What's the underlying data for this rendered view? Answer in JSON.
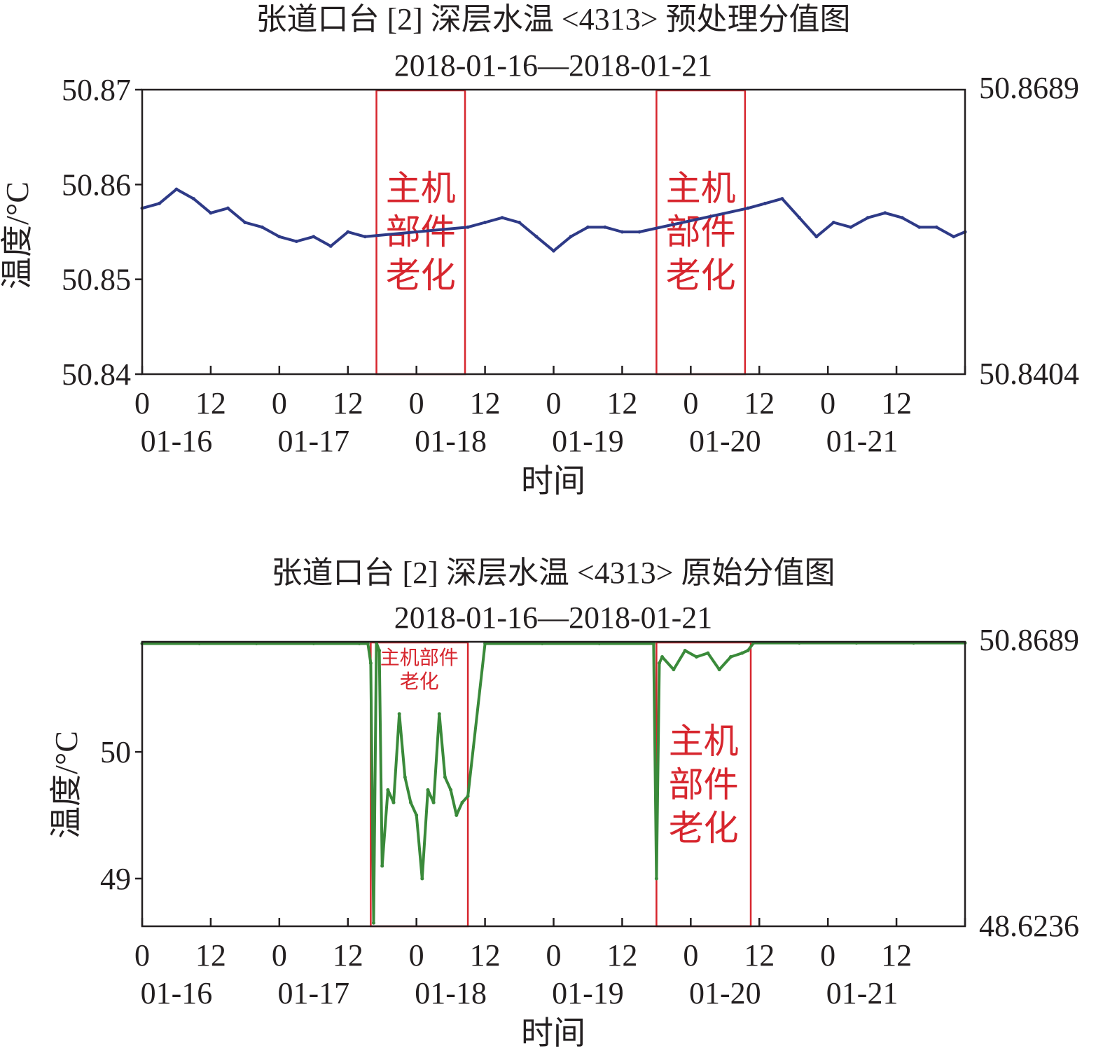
{
  "colors": {
    "preprocessed_series": "#2e3a87",
    "raw_series": "#3a8a3a",
    "annotation": "#d7262e",
    "axis": "#231f20"
  },
  "chart_data": [
    {
      "type": "line",
      "title": "张道口台 [2] 深层水温 <4313> 预处理分值图",
      "subtitle": "2018-01-16—2018-01-21",
      "xlabel": "时间",
      "ylabel": "温度/°C",
      "xlim_hours": [
        0,
        144
      ],
      "ylim": [
        50.84,
        50.87
      ],
      "yticks": [
        50.84,
        50.85,
        50.86,
        50.87
      ],
      "ytick_labels": [
        "50.84",
        "50.85",
        "50.86",
        "50.87"
      ],
      "right_labels": [
        "50.8689",
        "50.8404"
      ],
      "xtick_hours": [
        "0",
        "12",
        "0",
        "12",
        "0",
        "12",
        "0",
        "12",
        "0",
        "12",
        "0",
        "12"
      ],
      "xtick_dates": [
        "01-16",
        "01-17",
        "01-18",
        "01-19",
        "01-20",
        "01-21"
      ],
      "annotations": [
        {
          "text": "主机部件老化",
          "lines": [
            "主机",
            "部件",
            "老化"
          ],
          "start_hour": 41,
          "end_hour": 56.5
        },
        {
          "text": "主机部件老化",
          "lines": [
            "主机",
            "部件",
            "老化"
          ],
          "start_hour": 90,
          "end_hour": 105.5
        }
      ],
      "series": [
        {
          "x_hours": [
            0,
            3,
            6,
            9,
            12,
            15,
            18,
            21,
            24,
            27,
            30,
            33,
            36,
            39,
            57,
            60,
            63,
            66,
            69,
            72,
            75,
            78,
            81,
            84,
            87,
            106,
            109,
            112,
            115,
            118,
            121,
            124,
            127,
            130,
            133,
            136,
            139,
            142,
            144
          ],
          "values": [
            50.8575,
            50.858,
            50.8595,
            50.8585,
            50.857,
            50.8575,
            50.856,
            50.8555,
            50.8545,
            50.854,
            50.8545,
            50.8535,
            50.855,
            50.8545,
            50.8555,
            50.856,
            50.8565,
            50.856,
            50.8545,
            50.853,
            50.8545,
            50.8555,
            50.8555,
            50.855,
            50.855,
            50.8575,
            50.858,
            50.8585,
            50.8565,
            50.8545,
            50.856,
            50.8555,
            50.8565,
            50.857,
            50.8565,
            50.8555,
            50.8555,
            50.8545,
            50.855
          ]
        }
      ]
    },
    {
      "type": "line",
      "title": "张道口台 [2] 深层水温 <4313> 原始分值图",
      "subtitle": "2018-01-16—2018-01-21",
      "xlabel": "时间",
      "ylabel": "温度/°C",
      "xlim_hours": [
        0,
        144
      ],
      "ylim": [
        48.6236,
        50.8689
      ],
      "yticks": [
        49,
        50
      ],
      "ytick_labels": [
        "49",
        "50"
      ],
      "right_labels": [
        "50.8689",
        "48.6236"
      ],
      "xtick_hours": [
        "0",
        "12",
        "0",
        "12",
        "0",
        "12",
        "0",
        "12",
        "0",
        "12",
        "0",
        "12"
      ],
      "xtick_dates": [
        "01-16",
        "01-17",
        "01-18",
        "01-19",
        "01-20",
        "01-21"
      ],
      "annotations": [
        {
          "text": "主机部件老化",
          "lines": [
            "主机部件",
            "老化"
          ],
          "start_hour": 40,
          "end_hour": 57
        },
        {
          "text": "主机部件老化",
          "lines": [
            "主机",
            "部件",
            "老化"
          ],
          "start_hour": 90,
          "end_hour": 106.5
        }
      ],
      "series": [
        {
          "x_hours": [
            0,
            10,
            20,
            30,
            38,
            39.5,
            40,
            40.5,
            41,
            41.5,
            42,
            43,
            44,
            45,
            46,
            47,
            48,
            49,
            50,
            51,
            52,
            53,
            54,
            55,
            56,
            57,
            60,
            70,
            80,
            89.5,
            90,
            90.5,
            91,
            93,
            95,
            97,
            99,
            101,
            103,
            105,
            106,
            107,
            115,
            125,
            135,
            144
          ],
          "values": [
            50.855,
            50.855,
            50.855,
            50.855,
            50.855,
            50.855,
            50.7,
            48.65,
            50.86,
            50.8,
            49.1,
            49.7,
            49.6,
            50.3,
            49.8,
            49.6,
            49.5,
            49.0,
            49.7,
            49.6,
            50.3,
            49.8,
            49.7,
            49.5,
            49.6,
            49.65,
            50.855,
            50.855,
            50.855,
            50.855,
            49.0,
            50.7,
            50.75,
            50.65,
            50.8,
            50.75,
            50.78,
            50.65,
            50.75,
            50.78,
            50.8,
            50.86,
            50.86,
            50.86,
            50.86,
            50.86
          ]
        }
      ]
    }
  ]
}
